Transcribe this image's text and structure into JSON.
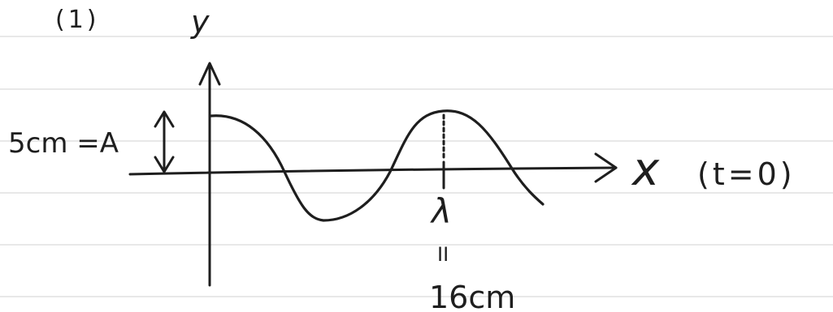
{
  "part_label": "(1)",
  "y_axis_label": "y",
  "x_axis_label": "x",
  "time_condition": "(t=0)",
  "amplitude_label": "5cm =A",
  "wavelength_symbol": "λ",
  "equals_mark": "II",
  "wavelength_value": "16cm",
  "ink_color": "#1e1e1e",
  "rule_color": "#d9d9d9"
}
